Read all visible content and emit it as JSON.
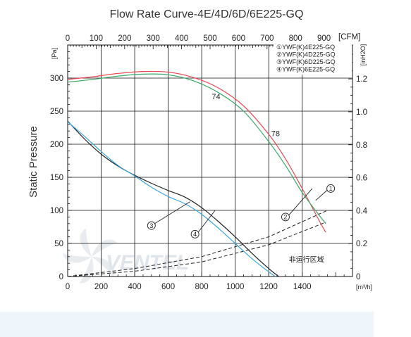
{
  "chart_data": {
    "type": "line",
    "title": "Flow Rate Curve-4E/4D/6D/6E225-GQ",
    "ylabel": "Static Pressure",
    "y_unit_left": "[Pa]",
    "y_unit_right": "[inH2O]",
    "x_unit_bottom": "[m³/h]",
    "x_unit_top": "[CFM]",
    "xlim": [
      0,
      1700
    ],
    "ylim": [
      0,
      350
    ],
    "x_ticks": [
      0,
      200,
      400,
      600,
      800,
      1000,
      1200,
      1400
    ],
    "y_ticks": [
      0,
      50,
      100,
      150,
      200,
      250,
      300
    ],
    "top_ticks": [
      {
        "label": "0",
        "value_m3h": 0
      },
      {
        "label": "100",
        "value_m3h": 170
      },
      {
        "label": "200",
        "value_m3h": 340
      },
      {
        "label": "300",
        "value_m3h": 510
      },
      {
        "label": "400",
        "value_m3h": 680
      },
      {
        "label": "500",
        "value_m3h": 850
      },
      {
        "label": "600",
        "value_m3h": 1020
      },
      {
        "label": "700",
        "value_m3h": 1190
      },
      {
        "label": "800",
        "value_m3h": 1360
      },
      {
        "label": "900",
        "value_m3h": 1530
      }
    ],
    "right_ticks": [
      {
        "label": "0",
        "value_pa": 0
      },
      {
        "label": "0.2",
        "value_pa": 49.8
      },
      {
        "label": "0.4",
        "value_pa": 99.6
      },
      {
        "label": "0.6",
        "value_pa": 149.4
      },
      {
        "label": "0.8",
        "value_pa": 199.2
      },
      {
        "label": "1.0",
        "value_pa": 249
      },
      {
        "label": "1.2",
        "value_pa": 298.8
      }
    ],
    "grid": true,
    "legend_position": "top-right",
    "legend": [
      "①YWF(K)4E225-GQ",
      "②YWF(K)4D225-GQ",
      "③YWF(K)6D225-GQ",
      "④YWF(K)6E225-GQ"
    ],
    "series": [
      {
        "name": "①YWF(K)4E225-GQ",
        "color": "#e84a55",
        "points": [
          [
            0,
            298
          ],
          [
            150,
            302
          ],
          [
            300,
            307
          ],
          [
            450,
            310
          ],
          [
            600,
            309
          ],
          [
            750,
            301
          ],
          [
            900,
            285
          ],
          [
            1050,
            258
          ],
          [
            1200,
            215
          ],
          [
            1300,
            178
          ],
          [
            1400,
            133
          ],
          [
            1500,
            85
          ],
          [
            1540,
            67
          ]
        ]
      },
      {
        "name": "②YWF(K)4D225-GQ",
        "color": "#3aa765",
        "points": [
          [
            0,
            294
          ],
          [
            150,
            298
          ],
          [
            300,
            303
          ],
          [
            450,
            306
          ],
          [
            600,
            305
          ],
          [
            750,
            296
          ],
          [
            900,
            278
          ],
          [
            1050,
            250
          ],
          [
            1200,
            204
          ],
          [
            1300,
            168
          ],
          [
            1400,
            127
          ],
          [
            1500,
            93
          ],
          [
            1540,
            80
          ]
        ]
      },
      {
        "name": "③YWF(K)6D225-GQ",
        "color": "#222222",
        "points": [
          [
            0,
            235
          ],
          [
            100,
            208
          ],
          [
            200,
            185
          ],
          [
            300,
            167
          ],
          [
            400,
            153
          ],
          [
            500,
            141
          ],
          [
            600,
            130
          ],
          [
            700,
            120
          ],
          [
            800,
            104
          ],
          [
            900,
            83
          ],
          [
            1000,
            60
          ],
          [
            1100,
            35
          ],
          [
            1200,
            12
          ],
          [
            1260,
            0
          ]
        ]
      },
      {
        "name": "④YWF(K)6E225-GQ",
        "color": "#3aa6dd",
        "points": [
          [
            0,
            234
          ],
          [
            100,
            212
          ],
          [
            200,
            189
          ],
          [
            300,
            168
          ],
          [
            400,
            152
          ],
          [
            500,
            135
          ],
          [
            600,
            121
          ],
          [
            700,
            110
          ],
          [
            800,
            94
          ],
          [
            900,
            73
          ],
          [
            1000,
            50
          ],
          [
            1100,
            27
          ],
          [
            1200,
            7
          ],
          [
            1240,
            0
          ]
        ]
      }
    ],
    "system_curves": [
      {
        "points": [
          [
            0,
            0
          ],
          [
            400,
            12
          ],
          [
            800,
            30
          ],
          [
            1200,
            60
          ],
          [
            1550,
            100
          ]
        ]
      },
      {
        "points": [
          [
            0,
            0
          ],
          [
            400,
            8
          ],
          [
            800,
            22
          ],
          [
            1200,
            48
          ],
          [
            1540,
            82
          ]
        ]
      }
    ],
    "annotations": [
      {
        "text": "74",
        "x": 860,
        "y": 268
      },
      {
        "text": "78",
        "x": 1215,
        "y": 212
      },
      {
        "text": "③",
        "x": 500,
        "y": 77
      },
      {
        "text": "④",
        "x": 760,
        "y": 64
      },
      {
        "text": "②",
        "x": 1300,
        "y": 90
      },
      {
        "text": "①",
        "x": 1570,
        "y": 133
      }
    ],
    "leaders": [
      {
        "from": [
          500,
          77
        ],
        "to": [
          730,
          113
        ]
      },
      {
        "from": [
          770,
          64
        ],
        "to": [
          880,
          100
        ]
      },
      {
        "from": [
          1310,
          90
        ],
        "to": [
          1460,
          133
        ]
      },
      {
        "from": [
          1480,
          115
        ],
        "to": [
          1560,
          133
        ]
      }
    ],
    "region_label": {
      "text": "非运行区域",
      "x": 1320,
      "y": 22
    },
    "watermark": "VENTEL"
  }
}
